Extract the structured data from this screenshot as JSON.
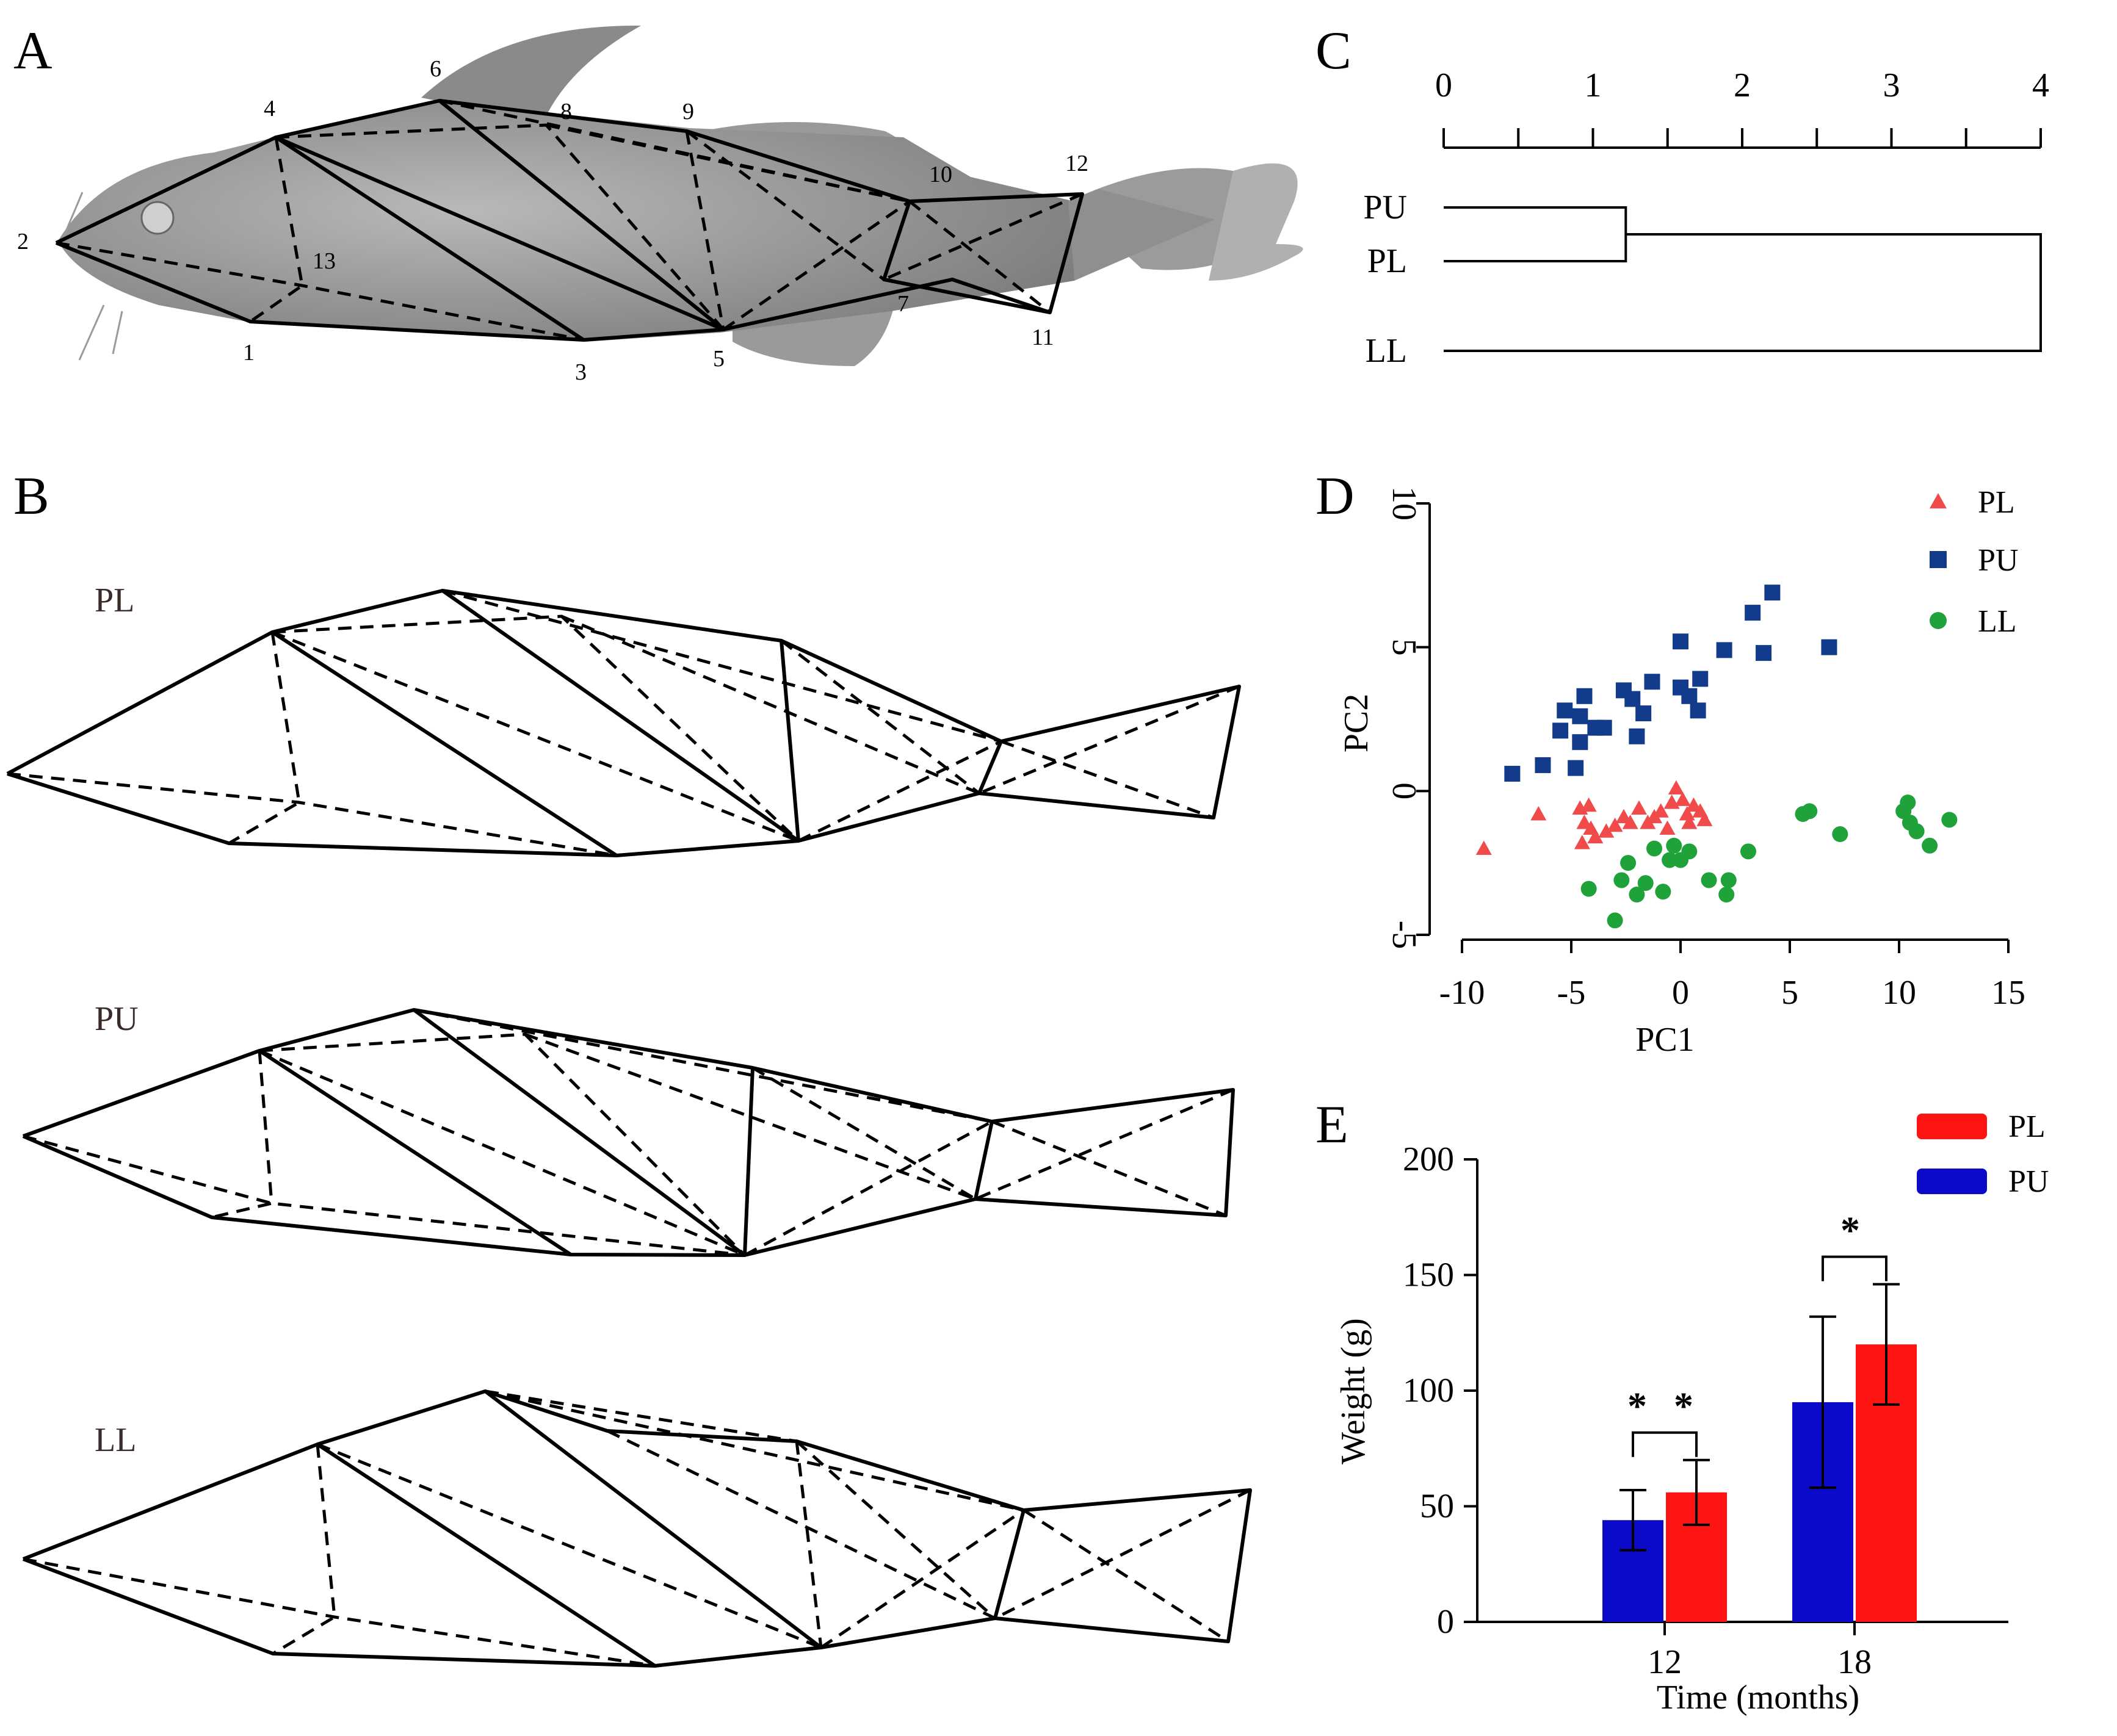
{
  "panels": {
    "a": "A",
    "b": "B",
    "c": "C",
    "d": "D",
    "e": "E"
  },
  "landmarks": [
    "1",
    "2",
    "3",
    "4",
    "5",
    "6",
    "7",
    "8",
    "9",
    "10",
    "11",
    "12",
    "13"
  ],
  "shapes": {
    "pl": "PL",
    "pu": "PU",
    "ll": "LL"
  },
  "colors": {
    "pl": "#f04a4a",
    "pu": "#123b8c",
    "ll": "#1fa23a",
    "bar_pl": "#ff1414",
    "bar_pu": "#0a0ac8",
    "fish_body": "#9c9c9c"
  },
  "chart_data": [
    {
      "id": "dendrogram",
      "type": "dendrogram",
      "axis_ticks": [
        "0",
        "1",
        "2",
        "3",
        "4"
      ],
      "xlim": [
        0,
        4
      ],
      "leaves": [
        "PU",
        "PL",
        "LL"
      ],
      "merges": [
        {
          "members": [
            "PU",
            "PL"
          ],
          "height": 1.22
        },
        {
          "members": [
            "PU-PL",
            "LL"
          ],
          "height": 4.0
        }
      ]
    },
    {
      "id": "pca",
      "type": "scatter",
      "xlabel": "PC1",
      "ylabel": "PC2",
      "xlim": [
        -10,
        15
      ],
      "ylim": [
        -5,
        10
      ],
      "x_ticks": [
        "-10",
        "-5",
        "0",
        "5",
        "10",
        "15"
      ],
      "y_ticks": [
        "-5",
        "0",
        "5",
        "10"
      ],
      "legend": [
        "PL",
        "PU",
        "LL"
      ],
      "legend_position": "top-right",
      "series": [
        {
          "name": "PL",
          "marker": "triangle",
          "points": [
            [
              -9.0,
              -2.0
            ],
            [
              -6.5,
              -0.8
            ],
            [
              -4.6,
              -0.6
            ],
            [
              -4.2,
              -0.5
            ],
            [
              -4.4,
              -1.1
            ],
            [
              -3.9,
              -1.6
            ],
            [
              -4.5,
              -1.8
            ],
            [
              -3.4,
              -1.4
            ],
            [
              -3.0,
              -1.2
            ],
            [
              -2.6,
              -0.9
            ],
            [
              -2.3,
              -1.1
            ],
            [
              -1.9,
              -0.6
            ],
            [
              -1.5,
              -1.1
            ],
            [
              -1.2,
              -0.9
            ],
            [
              -0.9,
              -0.7
            ],
            [
              -0.6,
              -1.3
            ],
            [
              -0.4,
              -0.4
            ],
            [
              -0.2,
              0.1
            ],
            [
              0.1,
              -0.3
            ],
            [
              0.3,
              -0.8
            ],
            [
              0.6,
              -0.5
            ],
            [
              0.9,
              -0.7
            ],
            [
              1.1,
              -1.0
            ],
            [
              -4.1,
              -1.3
            ],
            [
              0.4,
              -1.1
            ]
          ]
        },
        {
          "name": "PU",
          "marker": "square",
          "points": [
            [
              -7.7,
              0.6
            ],
            [
              -6.3,
              0.9
            ],
            [
              -5.3,
              2.8
            ],
            [
              -5.5,
              2.1
            ],
            [
              -4.8,
              0.8
            ],
            [
              -4.6,
              1.7
            ],
            [
              -4.6,
              2.6
            ],
            [
              -4.4,
              3.3
            ],
            [
              -3.9,
              2.2
            ],
            [
              -3.5,
              2.2
            ],
            [
              -2.6,
              3.5
            ],
            [
              -2.2,
              3.2
            ],
            [
              -2.0,
              1.9
            ],
            [
              -1.7,
              2.7
            ],
            [
              -1.3,
              3.8
            ],
            [
              0.0,
              5.2
            ],
            [
              0.0,
              3.6
            ],
            [
              0.4,
              3.3
            ],
            [
              0.8,
              2.8
            ],
            [
              0.9,
              3.9
            ],
            [
              2.0,
              4.9
            ],
            [
              3.3,
              6.2
            ],
            [
              3.8,
              4.8
            ],
            [
              4.2,
              6.9
            ],
            [
              6.8,
              5.0
            ]
          ]
        },
        {
          "name": "LL",
          "marker": "circle",
          "points": [
            [
              -4.2,
              -3.4
            ],
            [
              -3.0,
              -4.5
            ],
            [
              -2.7,
              -3.1
            ],
            [
              -2.4,
              -2.5
            ],
            [
              -2.0,
              -3.6
            ],
            [
              -1.6,
              -3.2
            ],
            [
              -1.2,
              -2.0
            ],
            [
              -0.8,
              -3.5
            ],
            [
              -0.5,
              -2.4
            ],
            [
              -0.3,
              -1.9
            ],
            [
              0.0,
              -2.4
            ],
            [
              0.4,
              -2.1
            ],
            [
              1.3,
              -3.1
            ],
            [
              2.1,
              -3.6
            ],
            [
              2.2,
              -3.1
            ],
            [
              3.1,
              -2.1
            ],
            [
              5.6,
              -0.8
            ],
            [
              5.9,
              -0.7
            ],
            [
              7.3,
              -1.5
            ],
            [
              10.2,
              -0.7
            ],
            [
              10.4,
              -0.4
            ],
            [
              10.5,
              -1.1
            ],
            [
              10.8,
              -1.4
            ],
            [
              11.4,
              -1.9
            ],
            [
              12.3,
              -1.0
            ]
          ]
        }
      ]
    },
    {
      "id": "weight",
      "type": "bar",
      "xlabel": "Time (months)",
      "ylabel": "Weight (g)",
      "categories": [
        "12",
        "18"
      ],
      "ylim": [
        0,
        200
      ],
      "y_ticks": [
        "0",
        "50",
        "100",
        "150",
        "200"
      ],
      "legend": [
        "PL",
        "PU"
      ],
      "legend_position": "top-right",
      "series": [
        {
          "name": "PU",
          "values": [
            44,
            95
          ],
          "errors": [
            13,
            37
          ]
        },
        {
          "name": "PL",
          "values": [
            56,
            120
          ],
          "errors": [
            14,
            26
          ]
        }
      ],
      "significance": [
        "* *",
        "*"
      ]
    }
  ]
}
